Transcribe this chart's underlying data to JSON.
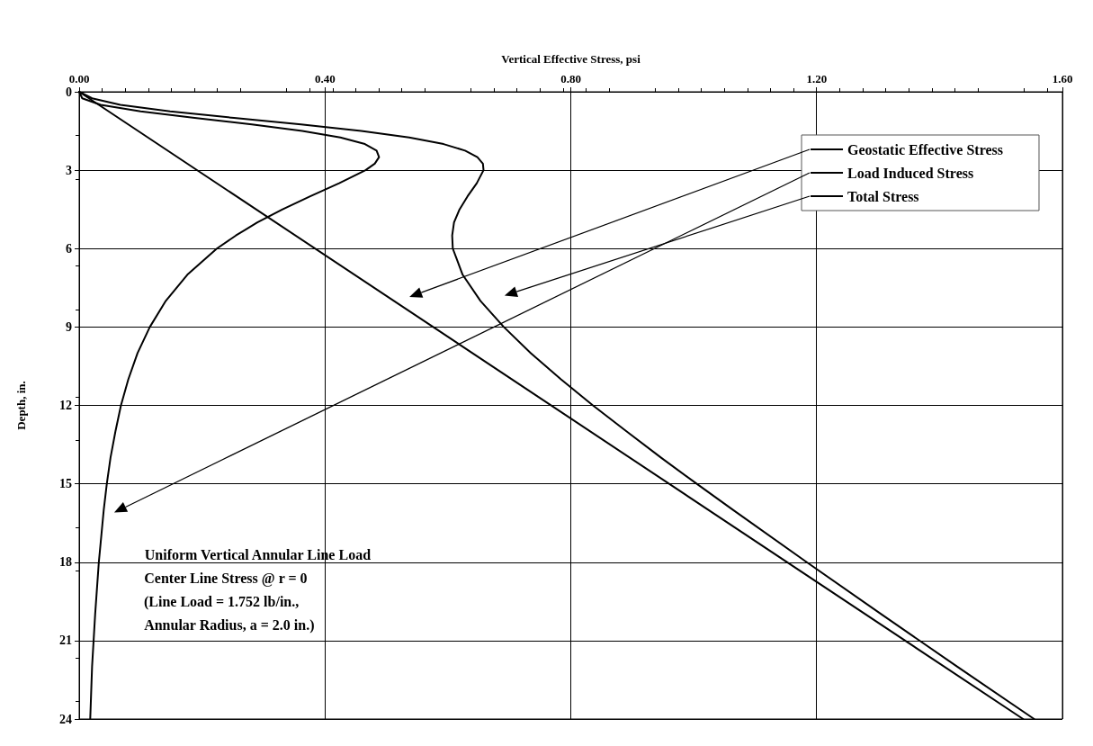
{
  "chart_data": {
    "type": "line",
    "xlabel": "Vertical Effective Stress, psi",
    "ylabel": "Depth, in.",
    "xlim": [
      0,
      1.6
    ],
    "xticks": [
      {
        "value": 0,
        "label": "0.00"
      },
      {
        "value": 0.4,
        "label": "0.40"
      },
      {
        "value": 0.8,
        "label": "0.80"
      },
      {
        "value": 1.2,
        "label": "1.20"
      },
      {
        "value": 1.6,
        "label": "1.60"
      }
    ],
    "ylim": [
      24,
      0
    ],
    "yticks": [
      0,
      3,
      6,
      9,
      12,
      15,
      18,
      21,
      24
    ],
    "grid": true,
    "legend": "top right",
    "line_style": "solid",
    "marker": "none",
    "series": [
      {
        "name": "Geostatic Effective Stress",
        "color": "#000000",
        "x": [
          0,
          1.536
        ],
        "values": [
          0,
          24
        ]
      },
      {
        "name": "Load Induced Stress",
        "color": "#000000",
        "x": [
          0,
          0.005,
          0.035,
          0.1,
          0.188,
          0.281,
          0.363,
          0.425,
          0.465,
          0.484,
          0.488,
          0.481,
          0.466,
          0.423,
          0.376,
          0.331,
          0.29,
          0.255,
          0.224,
          0.176,
          0.141,
          0.115,
          0.095,
          0.08,
          0.068,
          0.059,
          0.051,
          0.045,
          0.04,
          0.032,
          0.026,
          0.021,
          0.018
        ],
        "values": [
          0,
          0.25,
          0.5,
          0.75,
          1,
          1.25,
          1.5,
          1.75,
          2,
          2.25,
          2.5,
          2.75,
          3,
          3.5,
          4,
          4.5,
          5,
          5.5,
          6,
          7,
          8,
          9,
          10,
          11,
          12,
          13,
          14,
          15,
          16,
          18,
          20,
          22,
          24
        ]
      },
      {
        "name": "Total Stress",
        "color": "#000000",
        "x": [
          0,
          0.021,
          0.067,
          0.148,
          0.252,
          0.361,
          0.459,
          0.537,
          0.593,
          0.628,
          0.648,
          0.657,
          0.658,
          0.647,
          0.632,
          0.619,
          0.61,
          0.607,
          0.608,
          0.624,
          0.653,
          0.691,
          0.735,
          0.784,
          0.836,
          0.891,
          0.947,
          1.005,
          1.064,
          1.184,
          1.306,
          1.429,
          1.554
        ],
        "values": [
          0,
          0.25,
          0.5,
          0.75,
          1,
          1.25,
          1.5,
          1.75,
          2,
          2.25,
          2.5,
          2.75,
          3,
          3.5,
          4,
          4.5,
          5,
          5.5,
          6,
          7,
          8,
          9,
          10,
          11,
          12,
          13,
          14,
          15,
          16,
          18,
          20,
          22,
          24
        ]
      }
    ],
    "annotations": [
      "Uniform Vertical Annular Line Load",
      "Center Line Stress @ r = 0",
      "(Line Load = 1.752 lb/in.,",
      "Annular Radius, a = 2.0 in.)"
    ]
  }
}
